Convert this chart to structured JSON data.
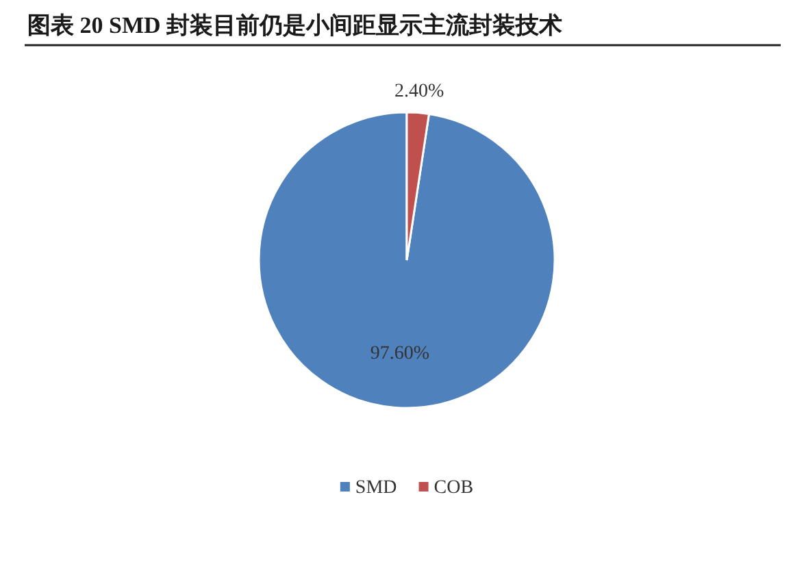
{
  "chart_data": {
    "type": "pie",
    "title": "图表 20 SMD 封装目前仍是小间距显示主流封装技术",
    "categories": [
      "SMD",
      "COB"
    ],
    "values": [
      97.6,
      2.4
    ],
    "colors": [
      "#4f81bd",
      "#c0504d"
    ],
    "value_labels": [
      "97.60%",
      "2.40%"
    ],
    "legend": "bottom"
  }
}
